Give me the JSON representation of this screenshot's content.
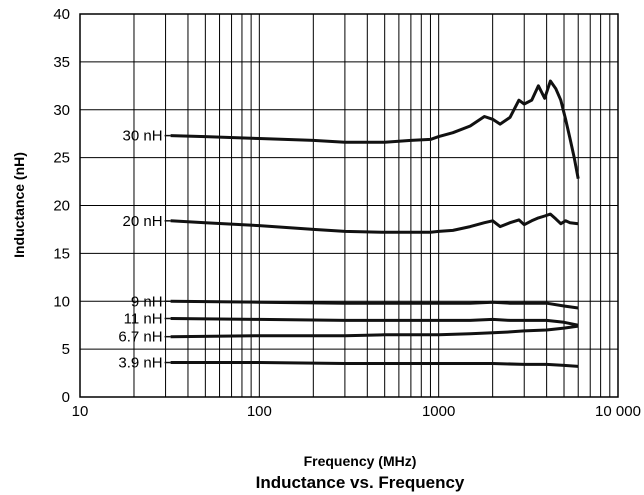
{
  "chart_data": {
    "type": "line",
    "title": "Inductance vs. Frequency",
    "xlabel": "Frequency (MHz)",
    "ylabel": "Inductance (nH)",
    "x_scale": "log",
    "xlim": [
      10,
      10000
    ],
    "ylim": [
      0,
      40
    ],
    "x_ticks": [
      "10",
      "100",
      "1000",
      "10 000"
    ],
    "y_ticks": [
      "0",
      "5",
      "10",
      "15",
      "20",
      "25",
      "30",
      "35",
      "40"
    ],
    "grid": true,
    "series": [
      {
        "name": "30 nH",
        "label_text": "30 nH",
        "x": [
          32,
          50,
          100,
          200,
          300,
          500,
          700,
          900,
          1000,
          1200,
          1500,
          1800,
          2000,
          2200,
          2500,
          2800,
          3000,
          3300,
          3600,
          3900,
          4200,
          4500,
          4800,
          5100,
          5400,
          5700,
          6000
        ],
        "y": [
          27.3,
          27.2,
          27.0,
          26.8,
          26.6,
          26.6,
          26.8,
          26.9,
          27.2,
          27.6,
          28.3,
          29.3,
          29.0,
          28.5,
          29.2,
          31.0,
          30.6,
          31.0,
          32.5,
          31.2,
          33.0,
          32.2,
          31.0,
          29.0,
          27.0,
          25.0,
          22.8
        ]
      },
      {
        "name": "20 nH",
        "label_text": "20 nH",
        "x": [
          32,
          50,
          100,
          200,
          300,
          500,
          700,
          900,
          1000,
          1200,
          1500,
          1800,
          2000,
          2200,
          2500,
          2800,
          3000,
          3300,
          3600,
          3900,
          4200,
          4500,
          4800,
          5100,
          5400,
          6000
        ],
        "y": [
          18.4,
          18.2,
          17.9,
          17.5,
          17.3,
          17.2,
          17.2,
          17.2,
          17.3,
          17.4,
          17.8,
          18.2,
          18.4,
          17.8,
          18.2,
          18.5,
          18.0,
          18.4,
          18.7,
          18.9,
          19.1,
          18.6,
          18.1,
          18.4,
          18.2,
          18.1
        ]
      },
      {
        "name": "9 nH",
        "label_text": "9 nH",
        "x": [
          32,
          100,
          300,
          500,
          1000,
          1500,
          2000,
          2500,
          3000,
          4000,
          5000,
          6000
        ],
        "y": [
          10.0,
          9.9,
          9.8,
          9.8,
          9.8,
          9.8,
          9.9,
          9.8,
          9.8,
          9.8,
          9.5,
          9.3
        ]
      },
      {
        "name": "11 nH",
        "label_text": "11 nH",
        "x": [
          32,
          100,
          300,
          500,
          1000,
          1500,
          2000,
          2500,
          3000,
          4000,
          5000,
          6000
        ],
        "y": [
          8.2,
          8.1,
          8.0,
          8.0,
          8.0,
          8.0,
          8.1,
          8.0,
          8.0,
          8.0,
          7.8,
          7.5
        ]
      },
      {
        "name": "6.7 nH",
        "label_text": "6.7 nH",
        "x": [
          32,
          100,
          300,
          500,
          1000,
          1500,
          2000,
          2500,
          3000,
          4000,
          5000,
          6000
        ],
        "y": [
          6.3,
          6.4,
          6.4,
          6.5,
          6.5,
          6.6,
          6.7,
          6.8,
          6.9,
          7.0,
          7.2,
          7.4
        ]
      },
      {
        "name": "3.9 nH",
        "label_text": "3.9 nH",
        "x": [
          32,
          100,
          300,
          500,
          1000,
          2000,
          3000,
          4000,
          5000,
          6000
        ],
        "y": [
          3.6,
          3.6,
          3.5,
          3.5,
          3.5,
          3.5,
          3.4,
          3.4,
          3.3,
          3.2
        ]
      }
    ]
  }
}
